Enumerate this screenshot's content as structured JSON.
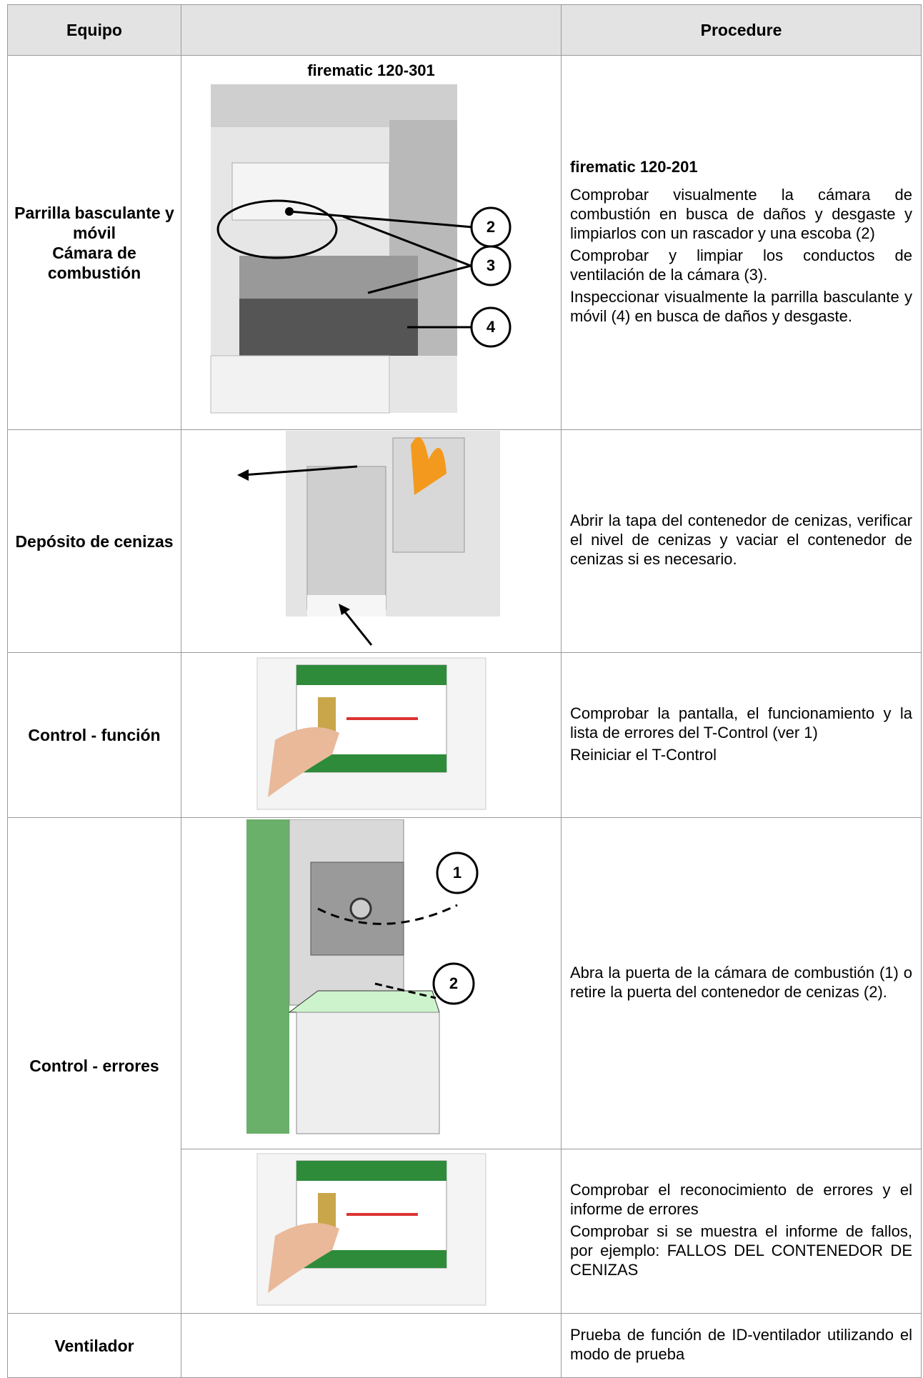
{
  "table": {
    "headers": [
      "Equipo",
      "Procedure"
    ],
    "rows": [
      {
        "equipment": [
          "Parrilla basculante y móvil",
          "Cámara de combustión"
        ],
        "caption": "firematic 120-301",
        "callouts": [
          "2",
          "3",
          "4"
        ],
        "title": "firematic 120-201",
        "paragraphs": [
          "Comprobar visualmente la cámara de combustión en busca de daños y desgaste y limpiarlos con un rascador y una escoba (2)",
          "Comprobar y limpiar los conductos de ventilación de la cámara (3).",
          "Inspeccionar visualmente la parrilla basculante y móvil (4) en busca de daños y desgaste."
        ]
      },
      {
        "equipment": [
          "Depósito de cenizas"
        ],
        "paragraphs": [
          "Abrir la tapa del contenedor de cenizas, verificar el nivel de cenizas y vaciar el contenedor de cenizas si es necesario."
        ]
      },
      {
        "equipment": [
          "Control - función"
        ],
        "paragraphs": [
          "Comprobar la pantalla, el funcionamiento y la lista de errores del T-Control (ver 1)",
          "Reiniciar el T-Control"
        ]
      },
      {
        "equipment": [
          "Control - errores"
        ],
        "callouts": [
          "1",
          "2"
        ],
        "paragraphs": [
          "Abra la puerta de la cámara de combustión (1) o retire la puerta del contenedor de cenizas (2)."
        ],
        "paragraphs_2": [
          "Comprobar el reconocimiento de errores y el informe de errores",
          "Comprobar si se muestra el informe de fallos, por ejemplo: FALLOS DEL CONTENEDOR DE CENIZAS"
        ]
      },
      {
        "equipment": [
          "Ventilador"
        ],
        "paragraphs": [
          "Prueba de función de ID-ventilador utilizando el modo de prueba"
        ]
      }
    ]
  }
}
